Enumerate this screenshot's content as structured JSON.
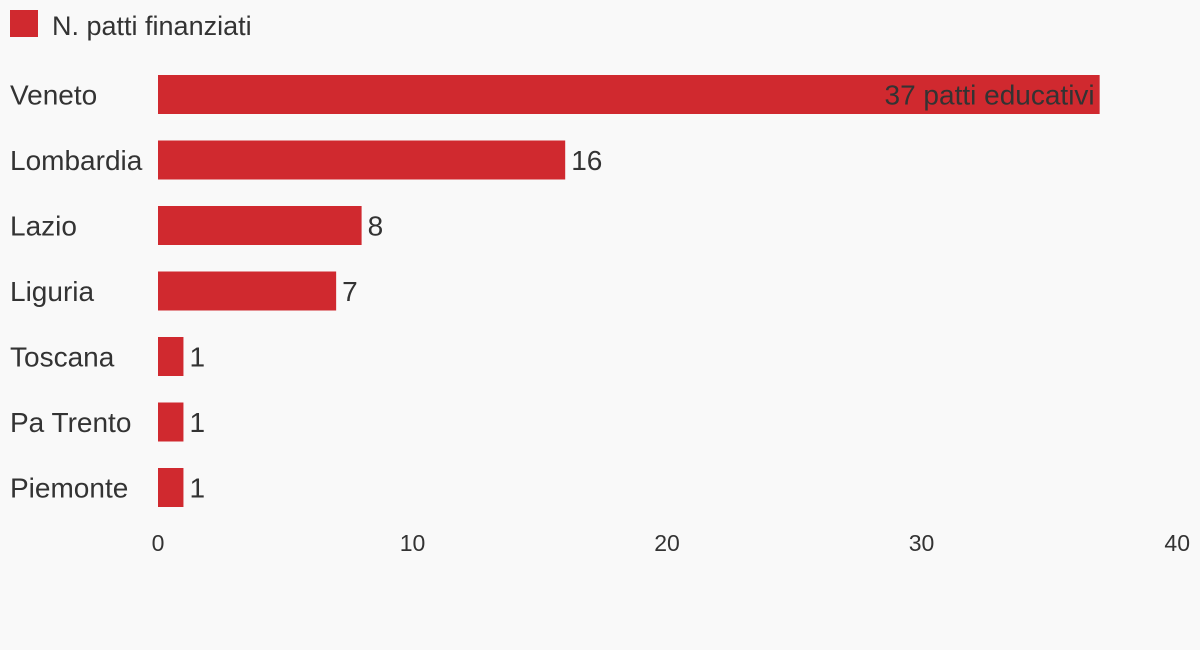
{
  "legend": {
    "label": "N. patti finanziati",
    "color": "#d0292f"
  },
  "chart_data": {
    "type": "bar",
    "orientation": "horizontal",
    "categories": [
      "Veneto",
      "Lombardia",
      "Lazio",
      "Liguria",
      "Toscana",
      "Pa Trento",
      "Piemonte"
    ],
    "series": [
      {
        "name": "N. patti finanziati",
        "values": [
          37,
          16,
          8,
          7,
          1,
          1,
          1
        ],
        "color": "#d0292f"
      }
    ],
    "data_labels": [
      "37 patti educativi",
      "16",
      "8",
      "7",
      "1",
      "1",
      "1"
    ],
    "xlim": [
      0,
      40
    ],
    "x_ticks": [
      0,
      10,
      20,
      30,
      40
    ],
    "x_tick_labels": [
      "0",
      "10",
      "20",
      "30",
      "40"
    ],
    "grid": false,
    "legend_position": "top-left"
  }
}
